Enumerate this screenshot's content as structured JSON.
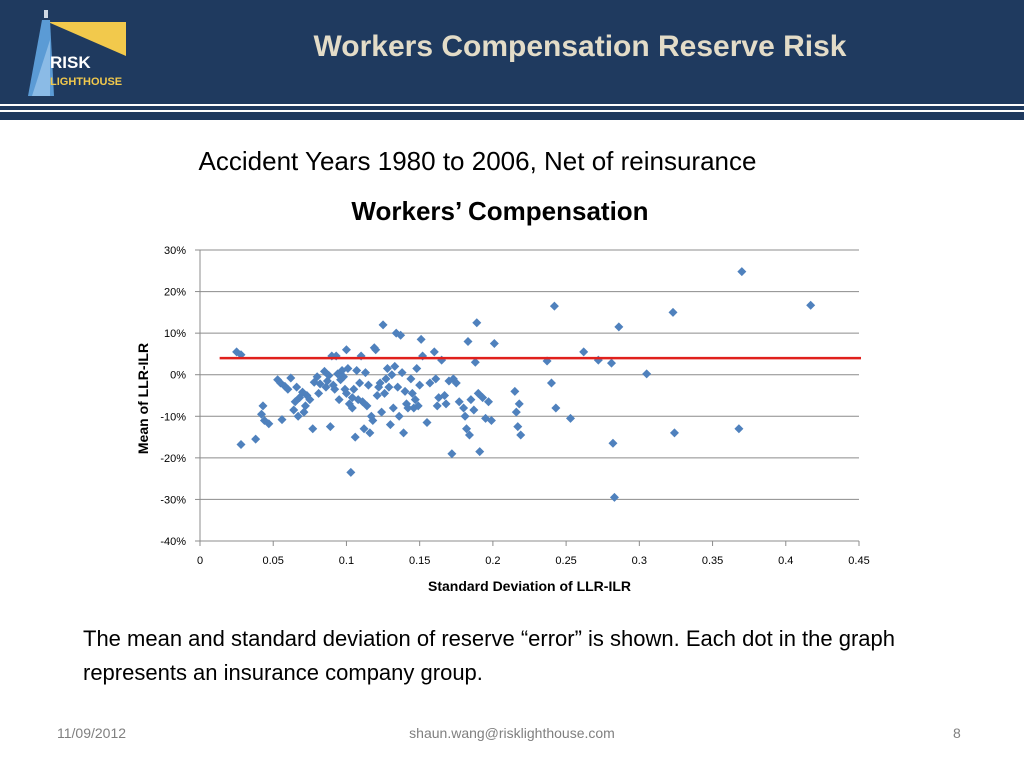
{
  "header": {
    "title": "Workers Compensation Reserve Risk",
    "logo_text_1": "RISK",
    "logo_text_2": "LIGHTHOUSE"
  },
  "subtitle": "Accident Years 1980 to 2006, Net of reinsurance",
  "body_text": "The mean and standard deviation of reserve “error” is shown. Each dot in the graph represents an insurance company group.",
  "footer": {
    "date": "11/09/2012",
    "email": "shaun.wang@risklighthouse.com",
    "page": "8"
  },
  "colors": {
    "header_bg": "#1f3a5f",
    "title_text": "#e3dcc8",
    "marker": "#4f81bd",
    "reference_line": "#e0201c",
    "logo_accent": "#f2c94c"
  },
  "chart_data": {
    "type": "scatter",
    "title": "Workers’ Compensation",
    "xlabel": "Standard Deviation of LLR-ILR",
    "ylabel": "Mean of LLR-ILR",
    "xlim": [
      0,
      0.45
    ],
    "ylim": [
      -0.4,
      0.3
    ],
    "x_ticks": [
      0,
      0.05,
      0.1,
      0.15,
      0.2,
      0.25,
      0.3,
      0.35,
      0.4,
      0.45
    ],
    "x_tick_labels": [
      "0",
      "0.05",
      "0.1",
      "0.15",
      "0.2",
      "0.25",
      "0.3",
      "0.35",
      "0.4",
      "0.45"
    ],
    "y_ticks": [
      -0.4,
      -0.3,
      -0.2,
      -0.1,
      0,
      0.1,
      0.2,
      0.3
    ],
    "y_tick_labels": [
      "-40%",
      "-30%",
      "-20%",
      "-10%",
      "0%",
      "10%",
      "20%",
      "30%"
    ],
    "grid": "horizontal",
    "reference_line": {
      "y": 0.04,
      "x_from": 0.01,
      "x_to": 0.45
    },
    "points": [
      [
        0.025,
        0.055
      ],
      [
        0.028,
        0.048
      ],
      [
        0.028,
        -0.168
      ],
      [
        0.038,
        -0.155
      ],
      [
        0.042,
        -0.095
      ],
      [
        0.043,
        -0.075
      ],
      [
        0.044,
        -0.11
      ],
      [
        0.047,
        -0.118
      ],
      [
        0.053,
        -0.012
      ],
      [
        0.055,
        -0.02
      ],
      [
        0.056,
        -0.108
      ],
      [
        0.058,
        -0.028
      ],
      [
        0.06,
        -0.035
      ],
      [
        0.062,
        -0.008
      ],
      [
        0.064,
        -0.085
      ],
      [
        0.065,
        -0.065
      ],
      [
        0.066,
        -0.03
      ],
      [
        0.067,
        -0.1
      ],
      [
        0.068,
        -0.055
      ],
      [
        0.07,
        -0.042
      ],
      [
        0.071,
        -0.09
      ],
      [
        0.072,
        -0.075
      ],
      [
        0.073,
        -0.05
      ],
      [
        0.075,
        -0.06
      ],
      [
        0.077,
        -0.13
      ],
      [
        0.078,
        -0.018
      ],
      [
        0.08,
        -0.005
      ],
      [
        0.081,
        -0.045
      ],
      [
        0.082,
        -0.022
      ],
      [
        0.085,
        0.008
      ],
      [
        0.086,
        -0.03
      ],
      [
        0.087,
        -0.015
      ],
      [
        0.088,
        -0.002
      ],
      [
        0.089,
        -0.125
      ],
      [
        0.09,
        0.045
      ],
      [
        0.091,
        -0.025
      ],
      [
        0.092,
        -0.035
      ],
      [
        0.093,
        0.045
      ],
      [
        0.094,
        0.002
      ],
      [
        0.095,
        -0.06
      ],
      [
        0.096,
        -0.012
      ],
      [
        0.097,
        0.01
      ],
      [
        0.098,
        -0.005
      ],
      [
        0.099,
        -0.035
      ],
      [
        0.1,
        0.06
      ],
      [
        0.1,
        -0.045
      ],
      [
        0.101,
        0.015
      ],
      [
        0.102,
        -0.07
      ],
      [
        0.103,
        -0.235
      ],
      [
        0.104,
        -0.055
      ],
      [
        0.104,
        -0.08
      ],
      [
        0.105,
        -0.035
      ],
      [
        0.106,
        -0.15
      ],
      [
        0.107,
        0.01
      ],
      [
        0.108,
        -0.06
      ],
      [
        0.109,
        -0.02
      ],
      [
        0.11,
        0.045
      ],
      [
        0.111,
        -0.065
      ],
      [
        0.112,
        -0.13
      ],
      [
        0.113,
        0.005
      ],
      [
        0.114,
        -0.075
      ],
      [
        0.115,
        -0.025
      ],
      [
        0.116,
        -0.14
      ],
      [
        0.117,
        -0.1
      ],
      [
        0.118,
        -0.11
      ],
      [
        0.119,
        0.065
      ],
      [
        0.12,
        0.06
      ],
      [
        0.121,
        -0.05
      ],
      [
        0.122,
        -0.03
      ],
      [
        0.123,
        -0.02
      ],
      [
        0.124,
        -0.09
      ],
      [
        0.125,
        0.12
      ],
      [
        0.126,
        -0.045
      ],
      [
        0.127,
        -0.01
      ],
      [
        0.128,
        0.015
      ],
      [
        0.129,
        -0.03
      ],
      [
        0.13,
        -0.12
      ],
      [
        0.131,
        0.0
      ],
      [
        0.132,
        -0.08
      ],
      [
        0.133,
        0.02
      ],
      [
        0.134,
        0.1
      ],
      [
        0.135,
        -0.03
      ],
      [
        0.136,
        -0.1
      ],
      [
        0.137,
        0.095
      ],
      [
        0.138,
        0.005
      ],
      [
        0.139,
        -0.14
      ],
      [
        0.14,
        -0.04
      ],
      [
        0.141,
        -0.07
      ],
      [
        0.142,
        -0.08
      ],
      [
        0.144,
        -0.01
      ],
      [
        0.145,
        -0.045
      ],
      [
        0.146,
        -0.08
      ],
      [
        0.147,
        -0.06
      ],
      [
        0.148,
        0.015
      ],
      [
        0.149,
        -0.075
      ],
      [
        0.15,
        -0.025
      ],
      [
        0.151,
        0.085
      ],
      [
        0.152,
        0.045
      ],
      [
        0.155,
        -0.115
      ],
      [
        0.157,
        -0.02
      ],
      [
        0.16,
        0.055
      ],
      [
        0.161,
        -0.01
      ],
      [
        0.162,
        -0.075
      ],
      [
        0.163,
        -0.055
      ],
      [
        0.165,
        0.035
      ],
      [
        0.167,
        -0.05
      ],
      [
        0.168,
        -0.07
      ],
      [
        0.17,
        -0.015
      ],
      [
        0.172,
        -0.19
      ],
      [
        0.173,
        -0.01
      ],
      [
        0.175,
        -0.02
      ],
      [
        0.177,
        -0.065
      ],
      [
        0.18,
        -0.08
      ],
      [
        0.181,
        -0.1
      ],
      [
        0.182,
        -0.13
      ],
      [
        0.183,
        0.08
      ],
      [
        0.184,
        -0.145
      ],
      [
        0.185,
        -0.06
      ],
      [
        0.187,
        -0.085
      ],
      [
        0.188,
        0.03
      ],
      [
        0.189,
        0.125
      ],
      [
        0.19,
        -0.045
      ],
      [
        0.191,
        -0.185
      ],
      [
        0.193,
        -0.055
      ],
      [
        0.195,
        -0.105
      ],
      [
        0.197,
        -0.065
      ],
      [
        0.199,
        -0.11
      ],
      [
        0.201,
        0.075
      ],
      [
        0.215,
        -0.04
      ],
      [
        0.216,
        -0.09
      ],
      [
        0.217,
        -0.125
      ],
      [
        0.218,
        -0.07
      ],
      [
        0.219,
        -0.145
      ],
      [
        0.237,
        0.033
      ],
      [
        0.24,
        -0.02
      ],
      [
        0.242,
        0.165
      ],
      [
        0.243,
        -0.08
      ],
      [
        0.253,
        -0.105
      ],
      [
        0.262,
        0.055
      ],
      [
        0.272,
        0.035
      ],
      [
        0.281,
        0.028
      ],
      [
        0.282,
        -0.165
      ],
      [
        0.283,
        -0.295
      ],
      [
        0.286,
        0.115
      ],
      [
        0.305,
        0.002
      ],
      [
        0.323,
        0.15
      ],
      [
        0.324,
        -0.14
      ],
      [
        0.368,
        -0.13
      ],
      [
        0.37,
        0.248
      ],
      [
        0.417,
        0.167
      ]
    ]
  }
}
